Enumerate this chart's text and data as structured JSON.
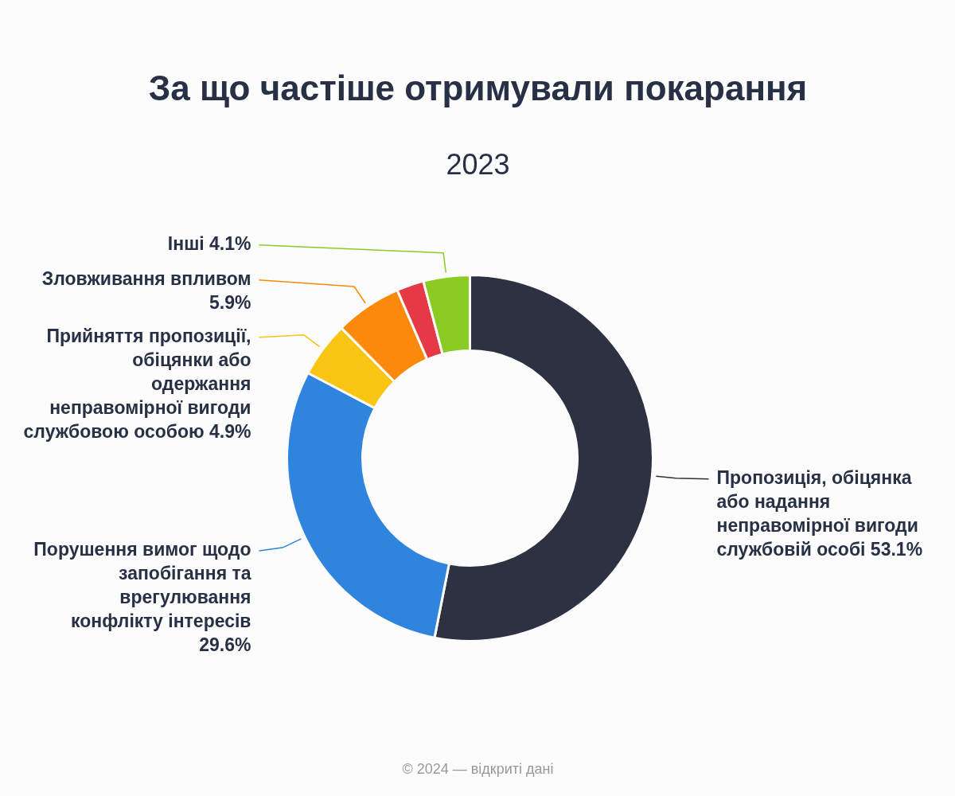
{
  "chart_data": {
    "type": "donut",
    "title": "За що частіше отримували покарання",
    "subtitle": "2023",
    "categories": [
      "Пропозиція, обіцянка або надання неправомірної вигоди службовій особі",
      "Порушення вимог щодо запобігання та врегулювання конфлікту інтересів",
      "Прийняття пропозиції, обіцянки або одержання неправомірної вигоди службовою особою",
      "Зловживання впливом",
      null,
      "Інші"
    ],
    "values": [
      53.1,
      29.6,
      4.9,
      5.9,
      2.4,
      4.1
    ],
    "value_labels": [
      "53.1%",
      "29.6%",
      "4.9%",
      "5.9%",
      null,
      "4.1%"
    ],
    "colors": [
      "#2d3142",
      "#2f84de",
      "#f9c513",
      "#fb8a0b",
      "#e63946",
      "#8ccb23"
    ],
    "annotations": [
      "© 2024 — відкриті дані"
    ]
  }
}
